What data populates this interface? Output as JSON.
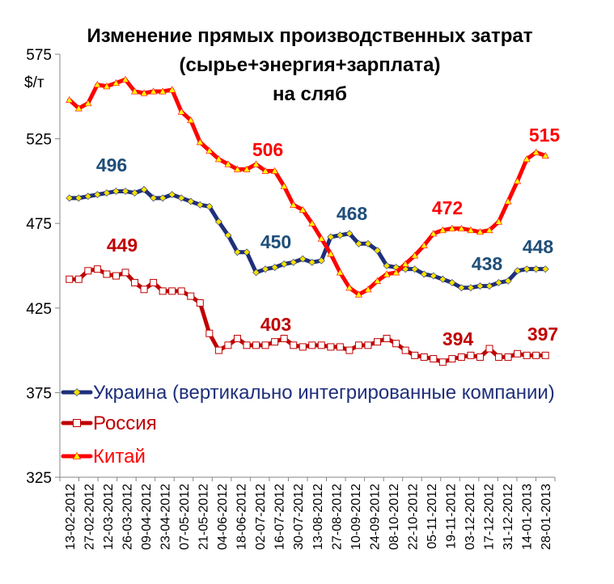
{
  "chart_data": {
    "type": "line",
    "title": [
      "Изменение прямых производственных затрат",
      "(сырье+энергия+зарплата)",
      "на сляб"
    ],
    "ylabel": "$/т",
    "ylim": [
      325,
      575
    ],
    "yticks": [
      325,
      375,
      425,
      475,
      525,
      575
    ],
    "grid": false,
    "legend_position": "bottom-left",
    "x_tick_labels": [
      "13-02-2012",
      "27-02-2012",
      "12-03-2012",
      "26-03-2012",
      "09-04-2012",
      "23-04-2012",
      "07-05-2012",
      "21-05-2012",
      "04-06-2012",
      "18-06-2012",
      "02-07-2012",
      "16-07-2012",
      "30-07-2012",
      "13-08-2012",
      "27-08-2012",
      "10-09-2012",
      "24-09-2012",
      "08-10-2012",
      "22-10-2012",
      "05-11-2012",
      "19-11-2012",
      "03-12-2012",
      "17-12-2012",
      "31-12-2012",
      "14-01-2013",
      "28-01-2013"
    ],
    "series": [
      {
        "name": "Украина (вертикально  интегрированные компании)",
        "color": "#1f2f7a",
        "marker": "diamond",
        "marker_fill": "#f5e000",
        "values": [
          490,
          490,
          491,
          492,
          493,
          494,
          494,
          493,
          495,
          490,
          490,
          492,
          490,
          488,
          486,
          485,
          476,
          468,
          458,
          458,
          446,
          448,
          449,
          451,
          452,
          454,
          452,
          453,
          467,
          468,
          469,
          463,
          463,
          459,
          450,
          449,
          448,
          448,
          445,
          444,
          442,
          440,
          437,
          437,
          438,
          438,
          440,
          441,
          447,
          448,
          448,
          448
        ]
      },
      {
        "name": "Россия",
        "color": "#c00000",
        "marker": "square",
        "marker_fill": "#ffffff",
        "values": [
          442,
          442,
          447,
          448,
          445,
          444,
          446,
          440,
          436,
          440,
          435,
          435,
          435,
          432,
          428,
          410,
          400,
          403,
          407,
          403,
          403,
          403,
          405,
          407,
          403,
          402,
          403,
          403,
          402,
          402,
          400,
          403,
          403,
          405,
          407,
          404,
          400,
          397,
          396,
          395,
          393,
          395,
          396,
          397,
          396,
          401,
          396,
          396,
          398,
          397,
          397,
          397
        ]
      },
      {
        "name": "Китай",
        "color": "#ff0000",
        "marker": "triangle",
        "marker_fill": "#ffff00",
        "values": [
          548,
          543,
          546,
          557,
          556,
          558,
          560,
          553,
          552,
          553,
          553,
          554,
          541,
          536,
          523,
          518,
          513,
          510,
          507,
          507,
          510,
          506,
          506,
          497,
          486,
          483,
          475,
          466,
          457,
          446,
          437,
          433,
          436,
          441,
          445,
          446,
          451,
          456,
          462,
          469,
          471,
          472,
          472,
          471,
          470,
          471,
          476,
          488,
          500,
          513,
          517,
          515
        ]
      }
    ],
    "annotations": [
      {
        "text": "496",
        "series": "Украина",
        "color": "#1f4e79"
      },
      {
        "text": "450",
        "series": "Украина",
        "color": "#1f4e79"
      },
      {
        "text": "468",
        "series": "Украина",
        "color": "#1f4e79"
      },
      {
        "text": "438",
        "series": "Украина",
        "color": "#1f4e79"
      },
      {
        "text": "448",
        "series": "Украина",
        "color": "#1f4e79"
      },
      {
        "text": "449",
        "series": "Россия",
        "color": "#c00000"
      },
      {
        "text": "403",
        "series": "Россия",
        "color": "#c00000"
      },
      {
        "text": "394",
        "series": "Россия",
        "color": "#c00000"
      },
      {
        "text": "397",
        "series": "Россия",
        "color": "#c00000"
      },
      {
        "text": "506",
        "series": "Китай",
        "color": "#ff0000"
      },
      {
        "text": "472",
        "series": "Китай",
        "color": "#ff0000"
      },
      {
        "text": "515",
        "series": "Китай",
        "color": "#ff0000"
      }
    ]
  }
}
